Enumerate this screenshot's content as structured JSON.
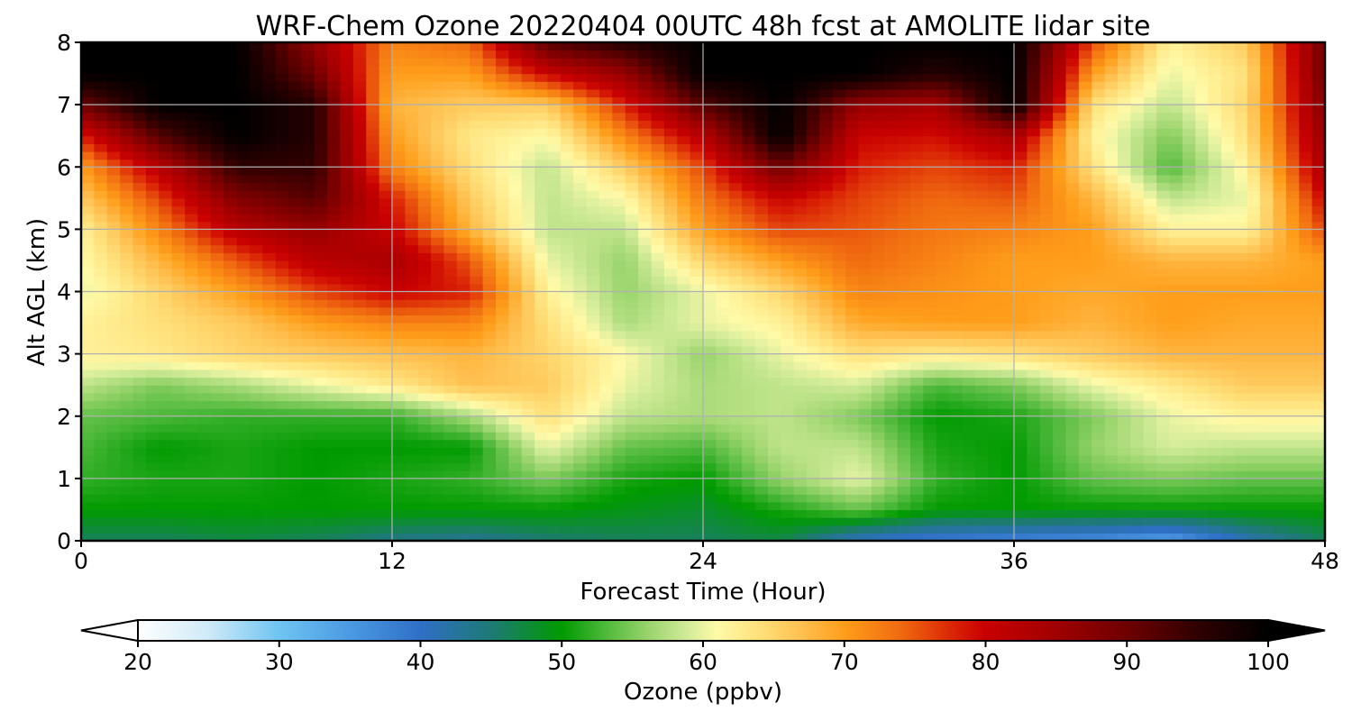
{
  "chart_data": {
    "type": "heatmap",
    "title": "WRF-Chem Ozone  20220404 00UTC 48h fcst at AMOLITE lidar site",
    "xlabel": "Forecast Time (Hour)",
    "ylabel": "Alt AGL (km)",
    "xlim": [
      0,
      48
    ],
    "ylim": [
      0,
      8
    ],
    "xticks": [
      0,
      12,
      24,
      36,
      48
    ],
    "yticks": [
      0,
      1,
      2,
      3,
      4,
      5,
      6,
      7,
      8
    ],
    "grid": true,
    "x": [
      0,
      3,
      6,
      9,
      12,
      15,
      18,
      21,
      24,
      27,
      30,
      33,
      36,
      39,
      42,
      45,
      48
    ],
    "y": [
      0,
      0.5,
      1,
      1.5,
      2,
      2.5,
      3,
      3.5,
      4,
      4.5,
      5,
      5.5,
      6,
      6.5,
      7,
      7.5,
      8
    ],
    "z": [
      [
        46,
        46,
        47,
        46,
        44,
        43,
        45,
        46,
        46,
        47,
        40,
        38,
        37,
        36,
        34,
        41,
        46
      ],
      [
        50,
        50,
        50,
        50,
        50,
        50,
        50,
        49,
        48,
        51,
        54,
        50,
        50,
        50,
        50,
        50,
        50
      ],
      [
        52,
        51,
        51,
        50,
        51,
        52,
        55,
        51,
        50,
        56,
        60,
        52,
        50,
        54,
        55,
        54,
        54
      ],
      [
        53,
        50,
        51,
        50,
        50,
        50,
        60,
        54,
        53,
        58,
        58,
        51,
        50,
        56,
        59,
        58,
        58
      ],
      [
        54,
        53,
        52,
        52,
        52,
        57,
        64,
        58,
        57,
        58,
        55,
        50,
        51,
        55,
        60,
        62,
        62
      ],
      [
        58,
        55,
        57,
        60,
        63,
        67,
        66,
        60,
        57,
        58,
        59,
        53,
        55,
        60,
        63,
        66,
        66
      ],
      [
        62,
        63,
        65,
        66,
        67,
        68,
        65,
        61,
        56,
        60,
        64,
        63,
        64,
        66,
        68,
        68,
        68
      ],
      [
        62,
        64,
        66,
        70,
        72,
        72,
        64,
        57,
        60,
        62,
        69,
        70,
        70,
        68,
        70,
        69,
        69
      ],
      [
        60,
        65,
        70,
        76,
        80,
        78,
        62,
        56,
        60,
        65,
        72,
        71,
        70,
        69,
        70,
        70,
        70
      ],
      [
        61,
        68,
        75,
        82,
        84,
        75,
        60,
        56,
        65,
        70,
        74,
        72,
        70,
        70,
        68,
        68,
        70
      ],
      [
        62,
        72,
        82,
        86,
        80,
        68,
        58,
        58,
        70,
        76,
        75,
        73,
        72,
        70,
        62,
        62,
        76
      ],
      [
        66,
        76,
        88,
        92,
        78,
        66,
        58,
        61,
        73,
        80,
        76,
        74,
        75,
        68,
        58,
        60,
        80
      ],
      [
        70,
        82,
        95,
        95,
        72,
        64,
        58,
        66,
        76,
        90,
        78,
        76,
        78,
        64,
        53,
        62,
        84
      ],
      [
        78,
        92,
        100,
        96,
        70,
        63,
        61,
        72,
        82,
        100,
        80,
        79,
        84,
        62,
        55,
        64,
        86
      ],
      [
        90,
        100,
        100,
        96,
        68,
        66,
        66,
        78,
        92,
        100,
        86,
        84,
        100,
        64,
        58,
        65,
        88
      ],
      [
        100,
        100,
        100,
        90,
        70,
        70,
        80,
        86,
        100,
        100,
        100,
        96,
        100,
        70,
        60,
        64,
        90
      ],
      [
        100,
        100,
        100,
        86,
        72,
        74,
        92,
        96,
        100,
        100,
        100,
        100,
        100,
        76,
        62,
        66,
        90
      ]
    ],
    "colorbar": {
      "label": "Ozone  (ppbv)",
      "min": 20,
      "max": 100,
      "ticks": [
        "20",
        "30",
        "40",
        "50",
        "60",
        "70",
        "80",
        "90",
        "100"
      ],
      "extend": "both",
      "colormap": [
        [
          20,
          "#ffffff"
        ],
        [
          25,
          "#cfeaf8"
        ],
        [
          30,
          "#6ec4f2"
        ],
        [
          35,
          "#4b9ae2"
        ],
        [
          40,
          "#2f6fc6"
        ],
        [
          45,
          "#1e7a74"
        ],
        [
          50,
          "#009a00"
        ],
        [
          53,
          "#4cb83a"
        ],
        [
          56,
          "#96d36a"
        ],
        [
          59,
          "#d4ec9a"
        ],
        [
          61,
          "#fffaa8"
        ],
        [
          64,
          "#ffe07a"
        ],
        [
          67,
          "#ffc050"
        ],
        [
          70,
          "#ff9e1a"
        ],
        [
          74,
          "#f06a10"
        ],
        [
          78,
          "#d81e05"
        ],
        [
          80,
          "#c80000"
        ],
        [
          85,
          "#a00000"
        ],
        [
          90,
          "#6e0000"
        ],
        [
          95,
          "#300000"
        ],
        [
          100,
          "#000000"
        ]
      ]
    }
  }
}
